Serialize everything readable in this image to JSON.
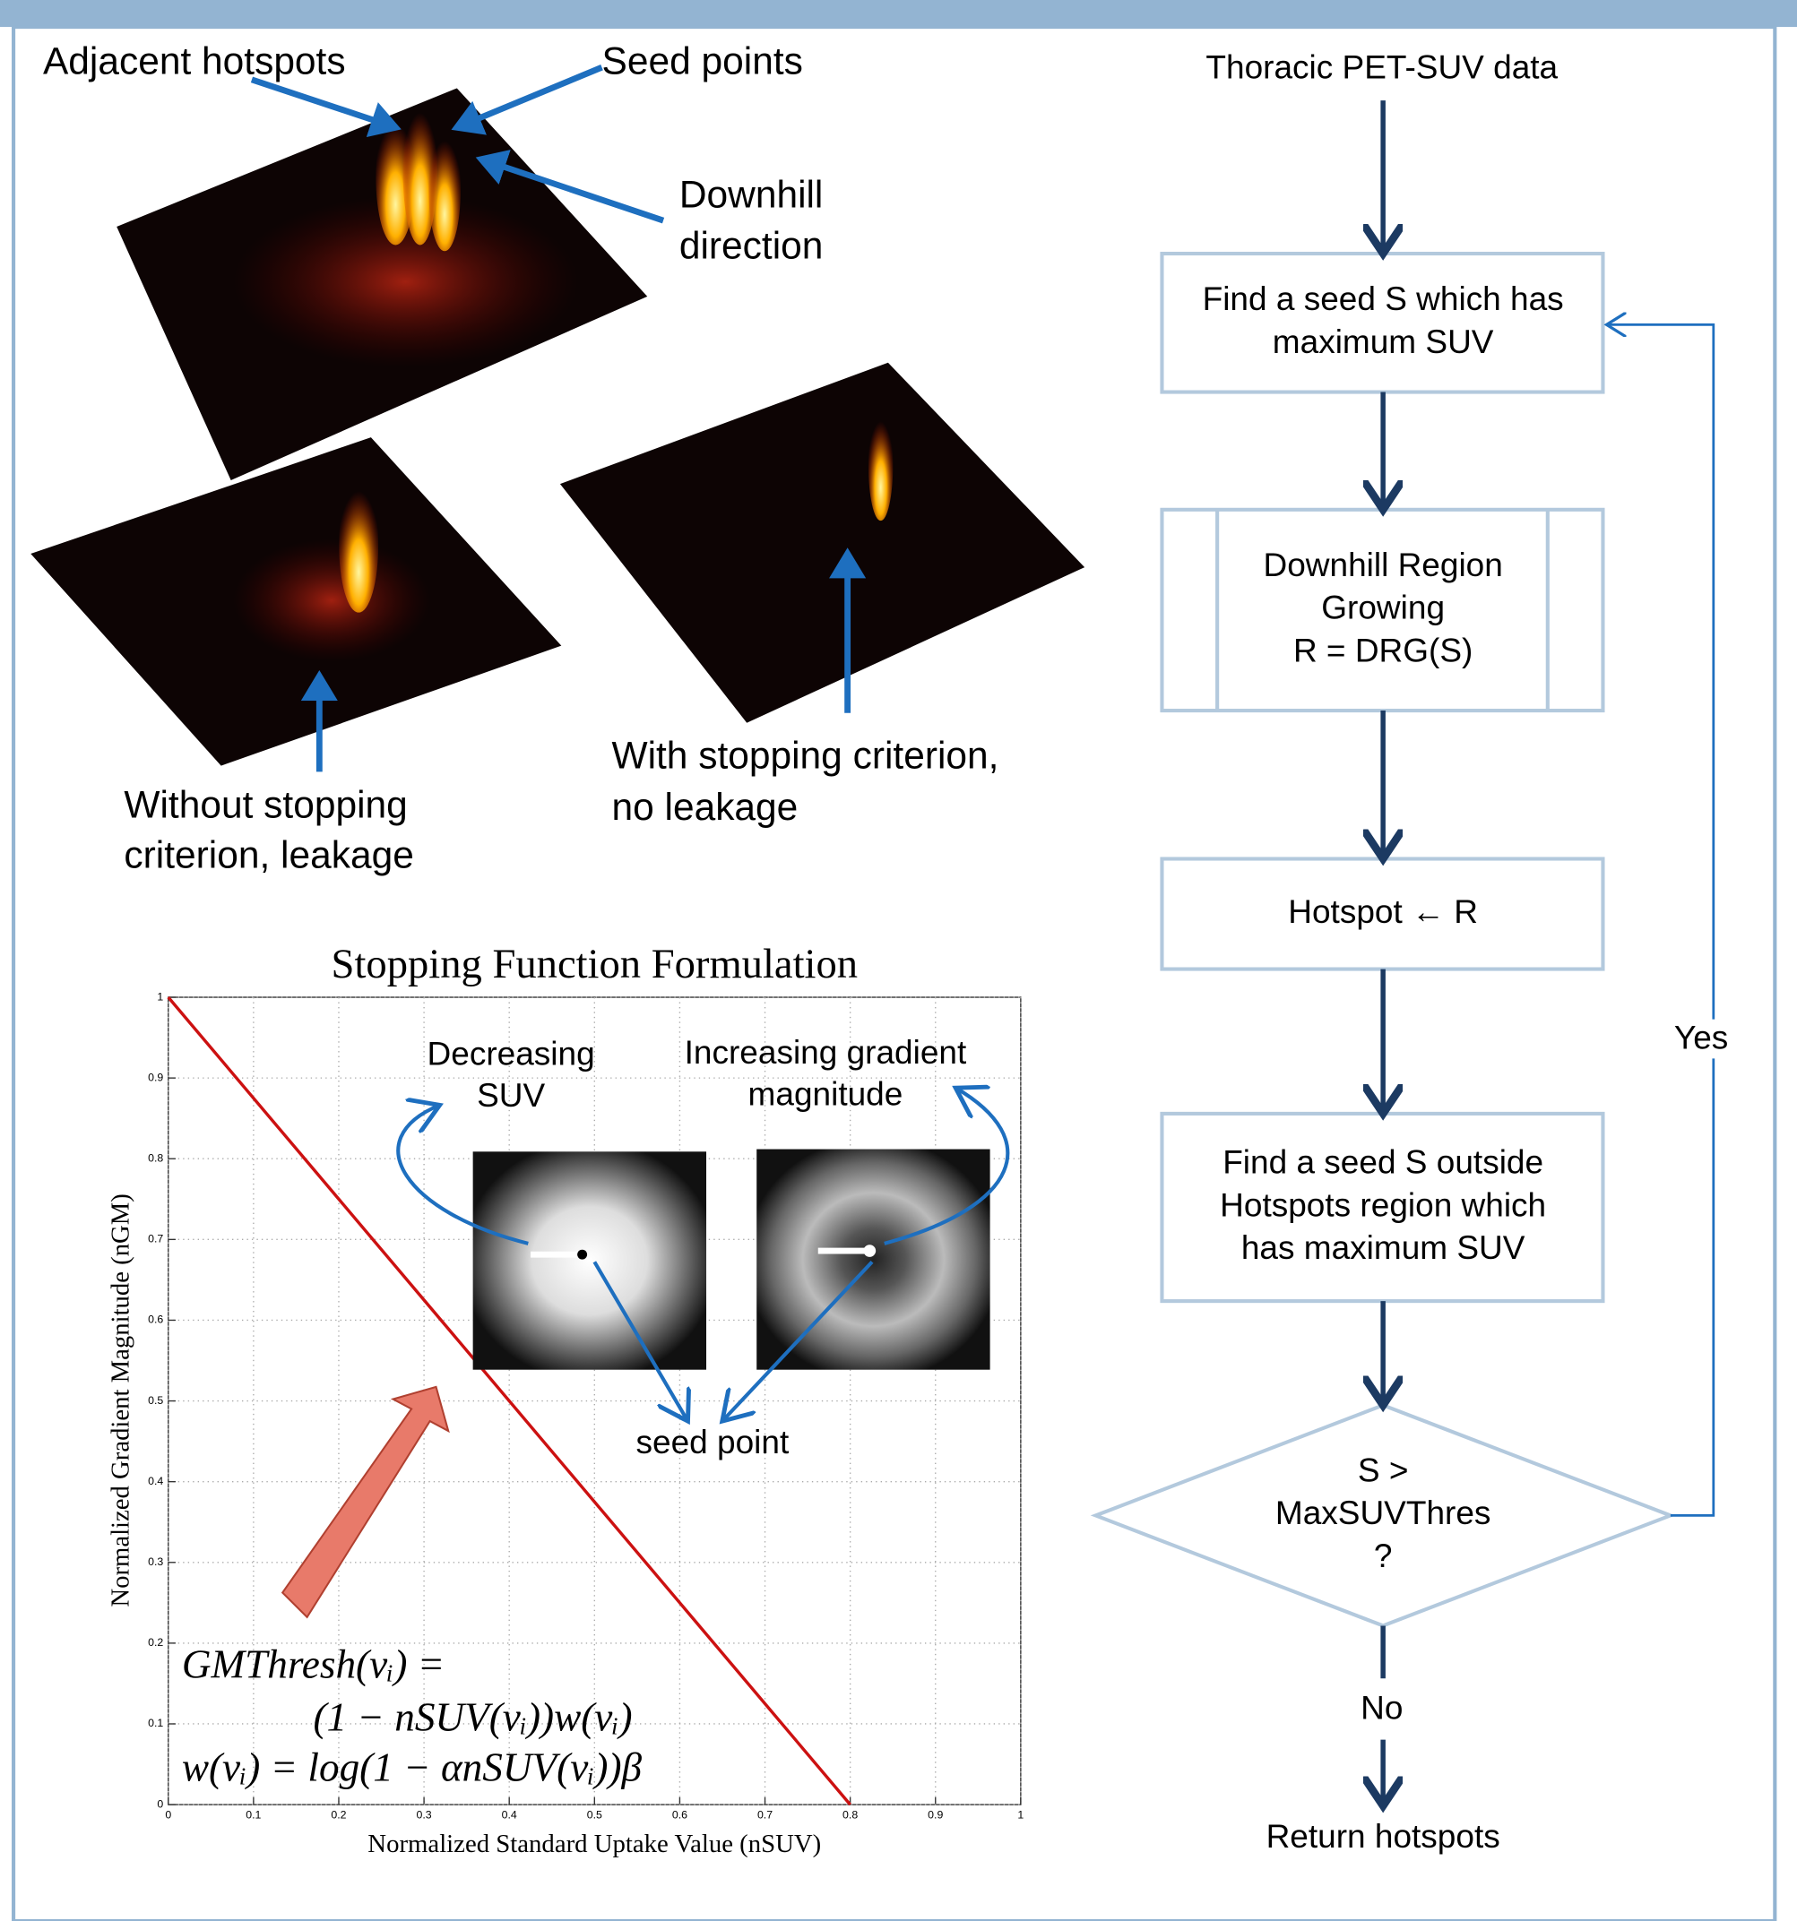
{
  "annotations": {
    "adjacent_hotspots": "Adjacent hotspots",
    "seed_points": "Seed points",
    "downhill_direction": [
      "Downhill",
      "direction"
    ],
    "without_stopping": [
      "Without stopping",
      "criterion, leakage"
    ],
    "with_stopping": [
      "With stopping criterion,",
      "no leakage"
    ]
  },
  "chart_data": {
    "type": "line",
    "title": "Stopping Function Formulation",
    "x_label": "Normalized Standard Uptake Value (nSUV)",
    "y_label": "Normalized Gradient Magnitude (nGM)",
    "x": [
      0,
      0.8
    ],
    "values": [
      1,
      0
    ],
    "color": "#cc1111",
    "xlim": [
      0,
      1
    ],
    "ylim": [
      0,
      1
    ],
    "xticks": [
      0,
      0.1,
      0.2,
      0.3,
      0.4,
      0.5,
      0.6,
      0.7,
      0.8,
      0.9,
      1
    ],
    "yticks": [
      0,
      0.1,
      0.2,
      0.3,
      0.4,
      0.5,
      0.6,
      0.7,
      0.8,
      0.9,
      1
    ],
    "grid": true,
    "decreasing_suv": [
      "Decreasing",
      "SUV"
    ],
    "increasing_gradient": [
      "Increasing gradient",
      "magnitude"
    ],
    "seed_point": "seed point",
    "formula": [
      "GMThresh(vᵢ) =",
      "(1 − nSUV(vᵢ))w(vᵢ)",
      "w(vᵢ) = log(1 − αnSUV(vᵢ))β"
    ]
  },
  "flowchart": {
    "start": "Thoracic PET-SUV data",
    "nodes": [
      [
        "Find a seed S which has",
        "maximum SUV"
      ],
      [
        "Downhill Region",
        "Growing",
        "R = DRG(S)"
      ],
      [
        "Hotspot ← R"
      ],
      [
        "Find a seed S outside",
        "Hotspots region which",
        "has maximum SUV"
      ]
    ],
    "decision": [
      "S >",
      "MaxSUVThres",
      "?"
    ],
    "yes": "Yes",
    "no": "No",
    "end": "Return hotspots"
  }
}
